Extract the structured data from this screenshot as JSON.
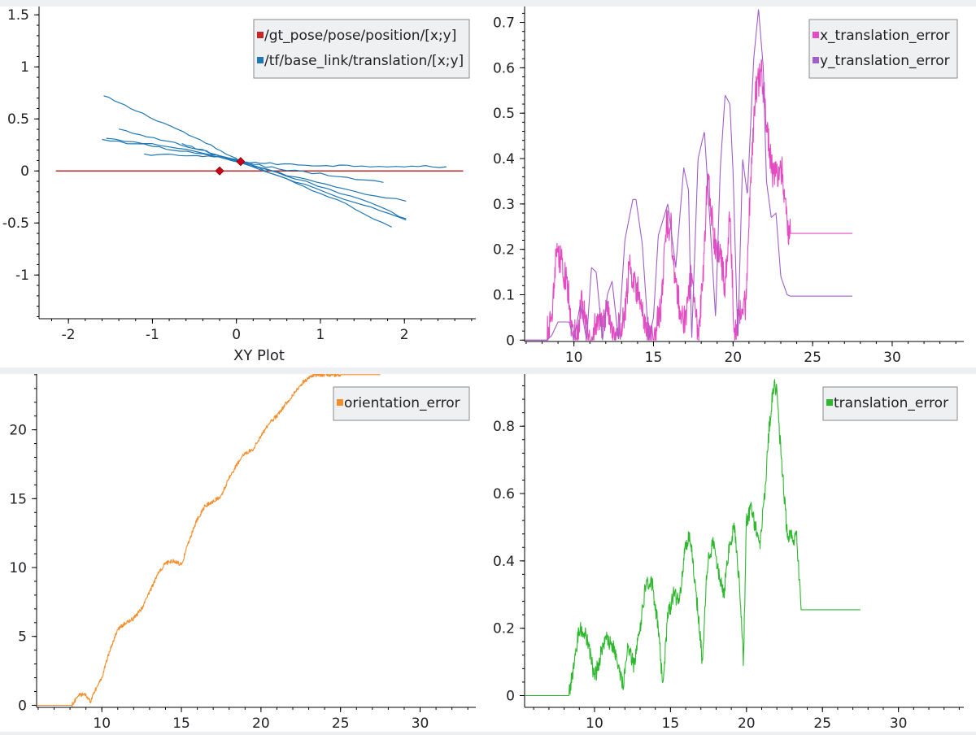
{
  "chart_data": [
    {
      "id": "xy",
      "type": "line",
      "plot_kind": "xy",
      "xlabel": "XY Plot",
      "ylabel": "",
      "xlim": [
        -2.35,
        2.85
      ],
      "ylim": [
        -1.42,
        1.58
      ],
      "x_ticks": [
        -2,
        -1,
        0,
        1,
        2
      ],
      "x_tick_labels": [
        "-2",
        "-1",
        "0",
        "1",
        "2"
      ],
      "y_ticks": [
        1.5,
        1,
        0.5,
        0,
        -0.5,
        -1
      ],
      "y_tick_labels": [
        "1.5",
        "1",
        "0.5",
        "0",
        "-0.5",
        "-1"
      ],
      "grid": false,
      "legend_position": "top-right",
      "series": [
        {
          "name": "/gt_pose/pose/position/[x;y]",
          "color": "#c62828",
          "x": [
            -2.15,
            2.7
          ],
          "y": [
            0,
            0
          ],
          "markers": [
            [
              -0.2,
              0.0
            ]
          ]
        },
        {
          "name": "/tf/base_link/translation/[x;y]",
          "color": "#1f77b4",
          "markers": [
            [
              0.05,
              0.09
            ]
          ],
          "paths": [
            {
              "x": [
                -1.58,
                -1.2,
                -0.7,
                -0.3,
                0.05,
                0.4,
                0.9,
                1.4,
                2.0,
                2.5
              ],
              "y": [
                0.72,
                0.58,
                0.4,
                0.24,
                0.09,
                0.07,
                0.055,
                0.05,
                0.045,
                0.04
              ]
            },
            {
              "x": [
                -1.6,
                -1.0,
                -0.5,
                0.05,
                0.6,
                1.2,
                1.85
              ],
              "y": [
                0.3,
                0.24,
                0.17,
                0.09,
                -0.08,
                -0.28,
                -0.54
              ]
            },
            {
              "x": [
                -1.4,
                -0.9,
                -0.4,
                0.05,
                0.7,
                1.4,
                2.02
              ],
              "y": [
                0.4,
                0.3,
                0.2,
                0.09,
                -0.1,
                -0.3,
                -0.47
              ]
            },
            {
              "x": [
                -1.1,
                -0.6,
                -0.2,
                0.05,
                0.5,
                1.1,
                1.75
              ],
              "y": [
                0.16,
                0.15,
                0.13,
                0.09,
                0.02,
                -0.04,
                -0.11
              ]
            },
            {
              "x": [
                -0.65,
                -0.3,
                0.05,
                0.6,
                1.3,
                2.02
              ],
              "y": [
                0.26,
                0.17,
                0.09,
                -0.04,
                -0.18,
                -0.29
              ]
            },
            {
              "x": [
                -1.55,
                -0.9,
                -0.3,
                0.05,
                0.7,
                1.5,
                2.02
              ],
              "y": [
                0.31,
                0.25,
                0.16,
                0.09,
                -0.07,
                -0.28,
                -0.46
              ]
            }
          ]
        }
      ]
    },
    {
      "id": "xy-error",
      "type": "line",
      "plot_kind": "time",
      "xlabel": "",
      "ylabel": "",
      "xlim": [
        6.9,
        34.5
      ],
      "ylim": [
        -0.003,
        0.735
      ],
      "x_ticks": [
        10,
        15,
        20,
        25,
        30
      ],
      "x_tick_labels": [
        "10",
        "15",
        "20",
        "25",
        "30"
      ],
      "y_ticks": [
        0,
        0.1,
        0.2,
        0.3,
        0.4,
        0.5,
        0.6,
        0.7
      ],
      "y_tick_labels": [
        "0",
        "0.1",
        "0.2",
        "0.3",
        "0.4",
        "0.5",
        "0.6",
        "0.7"
      ],
      "grid": false,
      "legend_position": "top-right",
      "series": [
        {
          "name": "x_translation_error",
          "color": "#e44cc2",
          "noise": 0.035,
          "x": [
            6.9,
            8.2,
            8.6,
            8.9,
            9.3,
            9.6,
            9.9,
            10.2,
            10.5,
            10.9,
            11.2,
            11.5,
            11.8,
            12.1,
            12.5,
            12.8,
            13.2,
            13.5,
            13.8,
            14.1,
            14.4,
            14.8,
            15.1,
            15.5,
            15.8,
            16.1,
            16.3,
            16.7,
            17.0,
            17.4,
            17.8,
            18.1,
            18.4,
            18.8,
            19.2,
            19.5,
            19.8,
            20.1,
            20.4,
            20.8,
            21.1,
            21.4,
            21.8,
            22.2,
            22.5,
            22.8,
            23.1,
            23.4,
            23.6,
            25.0,
            27.5
          ],
          "y": [
            0,
            0,
            0.05,
            0.2,
            0.16,
            0.12,
            0.02,
            0.01,
            0.09,
            0.0,
            0.01,
            0.05,
            0.02,
            0.09,
            0.0,
            0.03,
            0.05,
            0.17,
            0.12,
            0.1,
            0.05,
            0.0,
            0.02,
            0.08,
            0.26,
            0.25,
            0.15,
            0.06,
            0.04,
            0.15,
            0.0,
            0.13,
            0.37,
            0.22,
            0.18,
            0.12,
            0.28,
            0.0,
            0.06,
            0.08,
            0.35,
            0.55,
            0.59,
            0.45,
            0.36,
            0.37,
            0.37,
            0.25,
            0.235,
            0.235,
            0.235
          ]
        },
        {
          "name": "y_translation_error",
          "color": "#a05ec8",
          "noise": 0.0,
          "x": [
            6.9,
            8.3,
            8.6,
            9.0,
            9.7,
            10.0,
            10.4,
            10.8,
            11.1,
            11.4,
            11.8,
            12.1,
            12.4,
            12.8,
            13.2,
            13.7,
            13.9,
            14.3,
            14.7,
            15.0,
            15.3,
            15.9,
            16.4,
            16.9,
            17.2,
            17.4,
            17.8,
            18.2,
            18.6,
            18.9,
            19.2,
            19.5,
            19.8,
            20.0,
            20.3,
            20.6,
            20.9,
            21.3,
            21.6,
            21.9,
            22.1,
            22.4,
            22.7,
            23.0,
            23.4,
            23.6,
            27.5
          ],
          "y": [
            0,
            0,
            0.01,
            0.04,
            0.04,
            0.0,
            0.08,
            0.0,
            0.16,
            0.15,
            0.0,
            0.1,
            0.13,
            0.0,
            0.22,
            0.31,
            0.31,
            0.21,
            0.0,
            0.05,
            0.23,
            0.3,
            0.16,
            0.38,
            0.33,
            0.0,
            0.4,
            0.46,
            0.23,
            0.05,
            0.38,
            0.54,
            0.52,
            0.37,
            0.0,
            0.4,
            0.32,
            0.62,
            0.73,
            0.6,
            0.35,
            0.27,
            0.28,
            0.14,
            0.1,
            0.097,
            0.097
          ]
        }
      ]
    },
    {
      "id": "orientation",
      "type": "line",
      "plot_kind": "time",
      "xlabel": "",
      "ylabel": "",
      "xlim": [
        5.9,
        33.5
      ],
      "ylim": [
        -0.15,
        24.05
      ],
      "x_ticks": [
        10,
        15,
        20,
        25,
        30
      ],
      "x_tick_labels": [
        "10",
        "15",
        "20",
        "25",
        "30"
      ],
      "y_ticks": [
        0,
        5,
        10,
        15,
        20
      ],
      "y_tick_labels": [
        "0",
        "5",
        "10",
        "15",
        "20"
      ],
      "grid": false,
      "legend_position": "top-right",
      "series": [
        {
          "name": "orientation_error",
          "color": "#f28e2b",
          "noise": 0.15,
          "x": [
            5.9,
            8.1,
            8.6,
            9.0,
            9.3,
            9.5,
            10.0,
            10.5,
            11.0,
            11.5,
            12.0,
            12.5,
            13.0,
            13.5,
            14.0,
            14.5,
            15.0,
            15.5,
            16.0,
            16.5,
            17.0,
            17.5,
            18.0,
            18.5,
            19.0,
            19.5,
            20.0,
            20.5,
            21.0,
            21.5,
            22.0,
            22.5,
            23.0,
            23.5,
            24.0,
            25.0,
            26.0,
            27.5
          ],
          "y": [
            0,
            0,
            0.8,
            0.7,
            0.2,
            0.9,
            2.0,
            4.0,
            5.5,
            6.0,
            6.3,
            7.0,
            8.2,
            9.5,
            10.3,
            10.5,
            10.2,
            12.0,
            13.5,
            14.5,
            14.8,
            15.2,
            16.5,
            17.5,
            18.3,
            18.6,
            19.5,
            20.5,
            21.0,
            21.8,
            22.5,
            23.3,
            23.8,
            24.0,
            24.0,
            24.0,
            24.0,
            24.0
          ]
        }
      ]
    },
    {
      "id": "translation",
      "type": "line",
      "plot_kind": "time",
      "xlabel": "",
      "ylabel": "",
      "xlim": [
        5.4,
        34.3
      ],
      "ylim": [
        -0.035,
        0.955
      ],
      "x_ticks": [
        10,
        15,
        20,
        25,
        30
      ],
      "x_tick_labels": [
        "10",
        "15",
        "20",
        "25",
        "30"
      ],
      "y_ticks": [
        0,
        0.2,
        0.4,
        0.6,
        0.8
      ],
      "y_tick_labels": [
        "0",
        "0.2",
        "0.4",
        "0.6",
        "0.8"
      ],
      "grid": false,
      "legend_position": "top-right",
      "series": [
        {
          "name": "translation_error",
          "color": "#2eb82e",
          "noise": 0.025,
          "x": [
            5.4,
            8.3,
            8.6,
            9.0,
            9.4,
            9.7,
            10.0,
            10.4,
            10.8,
            11.2,
            11.5,
            11.9,
            12.2,
            12.6,
            13.0,
            13.4,
            13.8,
            14.2,
            14.5,
            14.8,
            15.2,
            15.6,
            16.0,
            16.3,
            16.7,
            17.1,
            17.4,
            17.8,
            18.2,
            18.5,
            18.9,
            19.2,
            19.5,
            19.8,
            20.0,
            20.3,
            20.6,
            20.9,
            21.2,
            21.5,
            21.8,
            22.0,
            22.3,
            22.7,
            23.0,
            23.3,
            23.6,
            25.0,
            27.5
          ],
          "y": [
            0,
            0,
            0.08,
            0.2,
            0.18,
            0.13,
            0.05,
            0.12,
            0.17,
            0.15,
            0.1,
            0.03,
            0.14,
            0.09,
            0.2,
            0.34,
            0.33,
            0.2,
            0.02,
            0.23,
            0.3,
            0.28,
            0.45,
            0.47,
            0.3,
            0.1,
            0.38,
            0.46,
            0.35,
            0.3,
            0.45,
            0.5,
            0.35,
            0.1,
            0.52,
            0.55,
            0.5,
            0.45,
            0.6,
            0.8,
            0.93,
            0.9,
            0.7,
            0.47,
            0.47,
            0.47,
            0.255,
            0.255,
            0.255
          ]
        }
      ]
    }
  ]
}
